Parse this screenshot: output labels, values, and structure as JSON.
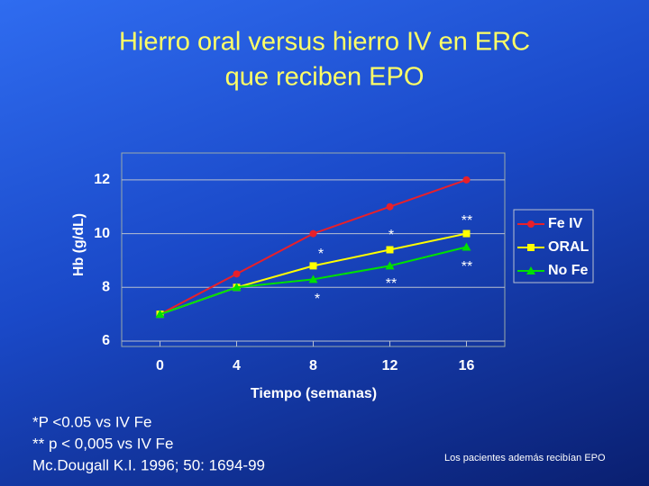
{
  "chart_data": {
    "type": "line",
    "title": [
      "Hierro oral versus hierro IV en ERC",
      "que reciben EPO"
    ],
    "x_label": "Tiempo  (semanas)",
    "y_label": "Hb  (g/dL)",
    "x": [
      0,
      4,
      8,
      12,
      16
    ],
    "xlim": [
      -2,
      18
    ],
    "xticks": [
      0,
      4,
      8,
      12,
      16
    ],
    "ylim": [
      6,
      13
    ],
    "yticks": [
      6,
      8,
      10,
      12
    ],
    "grid": true,
    "legend": "right",
    "series": [
      {
        "name": "Fe IV",
        "color": "#e8202a",
        "marker": "circle",
        "values": [
          7.0,
          8.5,
          10.0,
          11.0,
          12.0
        ]
      },
      {
        "name": "ORAL",
        "color": "#ffff00",
        "marker": "square",
        "values": [
          7.0,
          8.0,
          8.8,
          9.4,
          10.0
        ]
      },
      {
        "name": "No Fe",
        "color": "#00e000",
        "marker": "triangle",
        "values": [
          7.0,
          8.0,
          8.3,
          8.8,
          9.5
        ]
      }
    ],
    "annotations": [
      "*",
      "*",
      "*",
      "**",
      "**",
      "**"
    ],
    "footnotes": [
      "*P <0.05  vs IV Fe",
      "** p < 0,005 vs IV Fe",
      "Mc.Dougall K.I. 1996; 50: 1694-99"
    ],
    "note": "Los pacientes además recibían EPO"
  }
}
